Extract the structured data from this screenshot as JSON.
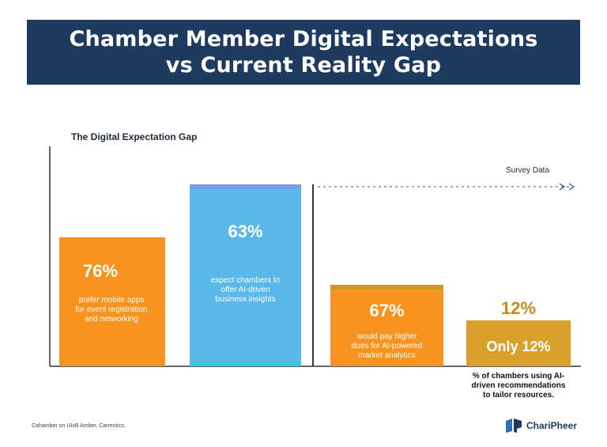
{
  "title_line1": "Chamber Member Digital Expectations",
  "title_line2": "vs Current Reality Gap",
  "subtitle": "The Digital Expectation Gap",
  "survey_label": "Survey Data",
  "footer_source": "Cahamber on UIxB Amber, Carrectics.",
  "logo_name": "ChariPheer",
  "colors": {
    "banner": "#1e3a5f",
    "orange": "#f7931e",
    "blue": "#5bb8ea",
    "gold": "#d9a12a",
    "axis": "#333333"
  },
  "chart_data": {
    "type": "bar",
    "title": "The Digital Expectation Gap",
    "bars": [
      {
        "value": 76,
        "label": "76%",
        "description": [
          "prefer mobile apps",
          "for event registration",
          "and networking"
        ],
        "color": "#f7931e"
      },
      {
        "value": 63,
        "label": "63%",
        "description": [
          "expect chambers to",
          "offer AI-driven",
          "business insights"
        ],
        "color": "#5bb8ea"
      },
      {
        "value": 67,
        "label": "67%",
        "description": [
          "would pay higher",
          "dues for AI-powered",
          "market analytics"
        ],
        "color": "#f7931e"
      },
      {
        "value": 12,
        "label": "12%",
        "inner_label": "Only 12%",
        "description": [
          "% of chambers using AI-",
          "driven recommendations",
          "to tailor resources."
        ],
        "color": "#d9a12a"
      }
    ]
  }
}
